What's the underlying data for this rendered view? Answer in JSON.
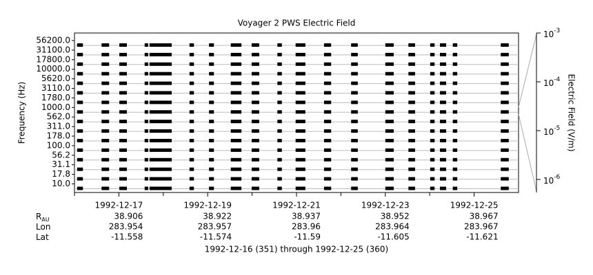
{
  "chart_data": {
    "type": "strip",
    "title": "Voyager 2 PWS Electric Field",
    "y_label": "Frequency (Hz)",
    "y2_label": "Electric Field (V/m)",
    "footer": "1992-12-16 (351) through 1992-12-25 (360)",
    "xlim": [
      0,
      10
    ],
    "xticks": [
      {
        "value": 1,
        "label": "1992-12-17"
      },
      {
        "value": 3,
        "label": "1992-12-19"
      },
      {
        "value": 5,
        "label": "1992-12-21"
      },
      {
        "value": 7,
        "label": "1992-12-23"
      },
      {
        "value": 9,
        "label": "1992-12-25"
      }
    ],
    "xminor": [
      0,
      2,
      4,
      6,
      8
    ],
    "channels": [
      {
        "value": 56200,
        "label": "56200.0"
      },
      {
        "value": 31100,
        "label": "31100.0"
      },
      {
        "value": 17800,
        "label": "17800.0"
      },
      {
        "value": 10000,
        "label": "10000.0"
      },
      {
        "value": 5620,
        "label": "5620.0"
      },
      {
        "value": 3110,
        "label": "3110.0"
      },
      {
        "value": 1780,
        "label": "1780.0"
      },
      {
        "value": 1000,
        "label": "1000.0"
      },
      {
        "value": 562,
        "label": "562.0"
      },
      {
        "value": 311,
        "label": "311.0"
      },
      {
        "value": 178,
        "label": "178.0"
      },
      {
        "value": 100,
        "label": "100.0"
      },
      {
        "value": 56.2,
        "label": "56.2"
      },
      {
        "value": 31.1,
        "label": "31.1"
      },
      {
        "value": 17.8,
        "label": "17.8"
      },
      {
        "value": 10,
        "label": "10.0"
      }
    ],
    "segments": [
      [
        0.06,
        0.19
      ],
      [
        0.61,
        0.78
      ],
      [
        1.01,
        1.18
      ],
      [
        1.58,
        1.66
      ],
      [
        1.69,
        2.19
      ],
      [
        2.59,
        2.69
      ],
      [
        3.03,
        3.14
      ],
      [
        3.52,
        3.76
      ],
      [
        3.99,
        4.16
      ],
      [
        4.57,
        4.67
      ],
      [
        4.98,
        5.2
      ],
      [
        5.62,
        5.78
      ],
      [
        6.23,
        6.38
      ],
      [
        7.0,
        7.19
      ],
      [
        7.52,
        7.67
      ],
      [
        8.01,
        8.11
      ],
      [
        8.23,
        8.37
      ],
      [
        8.52,
        8.62
      ],
      [
        9.6,
        9.78
      ]
    ],
    "y2log": true,
    "y2lim": [
      5.4e-07,
      0.001
    ],
    "y2ticks": [
      {
        "value": 0.001,
        "label": "10",
        "exp": "-3"
      },
      {
        "value": 0.0001,
        "label": "10",
        "exp": "-4"
      },
      {
        "value": 1e-05,
        "label": "10",
        "exp": "-5"
      },
      {
        "value": 1e-06,
        "label": "10",
        "exp": "-6"
      }
    ],
    "ephemeris": [
      {
        "name": "R",
        "sub": "AU",
        "values": [
          38.906,
          38.922,
          38.937,
          38.952,
          38.967
        ]
      },
      {
        "name": "Lon",
        "values": [
          283.954,
          283.957,
          283.96,
          283.964,
          283.967
        ]
      },
      {
        "name": "Lat",
        "values": [
          -11.558,
          -11.574,
          -11.59,
          -11.605,
          -11.621
        ]
      }
    ],
    "color": "#000000"
  }
}
